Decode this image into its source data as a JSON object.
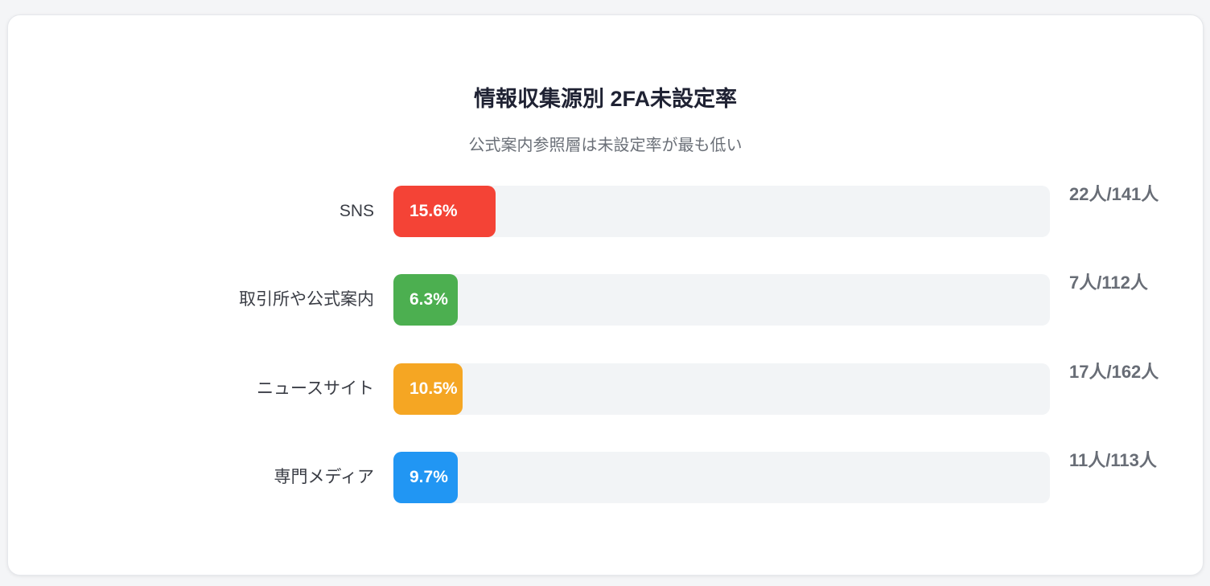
{
  "chart_data": {
    "type": "bar",
    "orientation": "horizontal",
    "title": "情報収集源別 2FA未設定率",
    "subtitle": "公式案内参照層は未設定率が最も低い",
    "xlim": [
      0,
      100
    ],
    "unit": "%",
    "grid": false,
    "categories": [
      "SNS",
      "取引所や公式案内",
      "ニュースサイト",
      "専門メディア"
    ],
    "values": [
      15.6,
      6.3,
      10.5,
      9.7
    ],
    "value_labels": [
      "15.6%",
      "6.3%",
      "10.5%",
      "9.7%"
    ],
    "counts": [
      "22人/141人",
      "7人/112人",
      "17人/162人",
      "11人/113人"
    ],
    "colors": [
      "#f44336",
      "#4caf50",
      "#f5a623",
      "#2196f3"
    ],
    "track_color": "#f2f4f6"
  }
}
